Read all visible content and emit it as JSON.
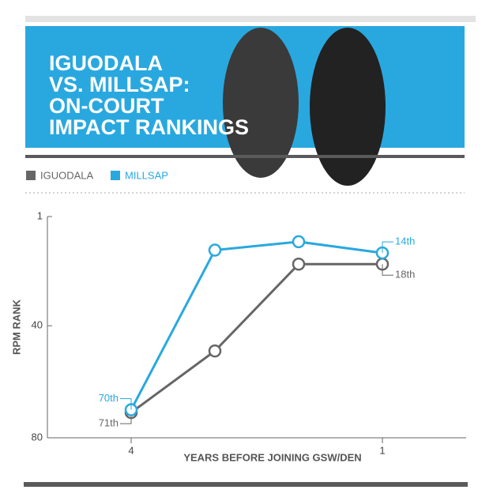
{
  "title": [
    "IGUODALA",
    "VS. MILLSAP:",
    "ON-COURT",
    "IMPACT RANKINGS"
  ],
  "chart_data": {
    "type": "line",
    "x_label": "YEARS BEFORE JOINING GSW/DEN",
    "y_label": "RPM RANK",
    "x": [
      4,
      3,
      2,
      1
    ],
    "xlim": [
      5,
      0
    ],
    "xticks": [
      4,
      1
    ],
    "ylim": [
      80,
      1
    ],
    "yticks": [
      1,
      40,
      80
    ],
    "series": [
      {
        "name": "IGUODALA",
        "color": "#666666",
        "values": [
          71,
          49,
          18,
          18
        ],
        "value_labels": [
          "71th",
          null,
          null,
          "18th"
        ]
      },
      {
        "name": "MILLSAP",
        "color": "#29a8df",
        "values": [
          70,
          13,
          10,
          14
        ],
        "value_labels": [
          "70th",
          null,
          null,
          "14th"
        ]
      }
    ]
  }
}
